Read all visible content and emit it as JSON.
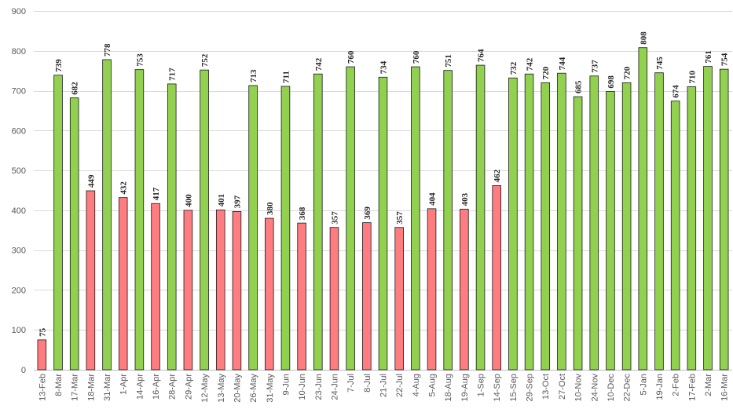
{
  "chart_data": {
    "type": "bar",
    "title": "",
    "xlabel": "",
    "ylabel": "",
    "ylim": [
      0,
      900
    ],
    "yticks": [
      0,
      100,
      200,
      300,
      400,
      500,
      600,
      700,
      800,
      900
    ],
    "grid": true,
    "legend": "none",
    "colors": {
      "green": "#92d050",
      "red": "#ff7c80"
    },
    "categories": [
      "13-Feb",
      "8-Mar",
      "17-Mar",
      "18-Mar",
      "31-Mar",
      "1-Apr",
      "14-Apr",
      "16-Apr",
      "28-Apr",
      "29-Apr",
      "12-May",
      "13-May",
      "20-May",
      "26-May",
      "31-May",
      "9-Jun",
      "10-Jun",
      "23-Jun",
      "24-Jun",
      "7-Jul",
      "8-Jul",
      "21-Jul",
      "22-Jul",
      "4-Aug",
      "5-Aug",
      "18-Aug",
      "19-Aug",
      "1-Sep",
      "14-Sep",
      "15-Sep",
      "29-Sep",
      "13-Oct",
      "27-Oct",
      "10-Nov",
      "24-Nov",
      "10-Dec",
      "22-Dec",
      "5-Jan",
      "19-Jan",
      "2-Feb",
      "17-Feb",
      "2-Mar",
      "16-Mar"
    ],
    "values": [
      75,
      739,
      682,
      449,
      778,
      432,
      753,
      417,
      717,
      400,
      752,
      401,
      397,
      713,
      380,
      711,
      368,
      742,
      357,
      760,
      369,
      734,
      357,
      760,
      404,
      751,
      403,
      764,
      462,
      732,
      742,
      720,
      744,
      685,
      737,
      698,
      720,
      808,
      745,
      674,
      710,
      761,
      754
    ],
    "bar_colors": [
      "red",
      "green",
      "green",
      "red",
      "green",
      "red",
      "green",
      "red",
      "green",
      "red",
      "green",
      "red",
      "red",
      "green",
      "red",
      "green",
      "red",
      "green",
      "red",
      "green",
      "red",
      "green",
      "red",
      "green",
      "red",
      "green",
      "red",
      "green",
      "red",
      "green",
      "green",
      "green",
      "green",
      "green",
      "green",
      "green",
      "green",
      "green",
      "green",
      "green",
      "green",
      "green",
      "green"
    ]
  }
}
